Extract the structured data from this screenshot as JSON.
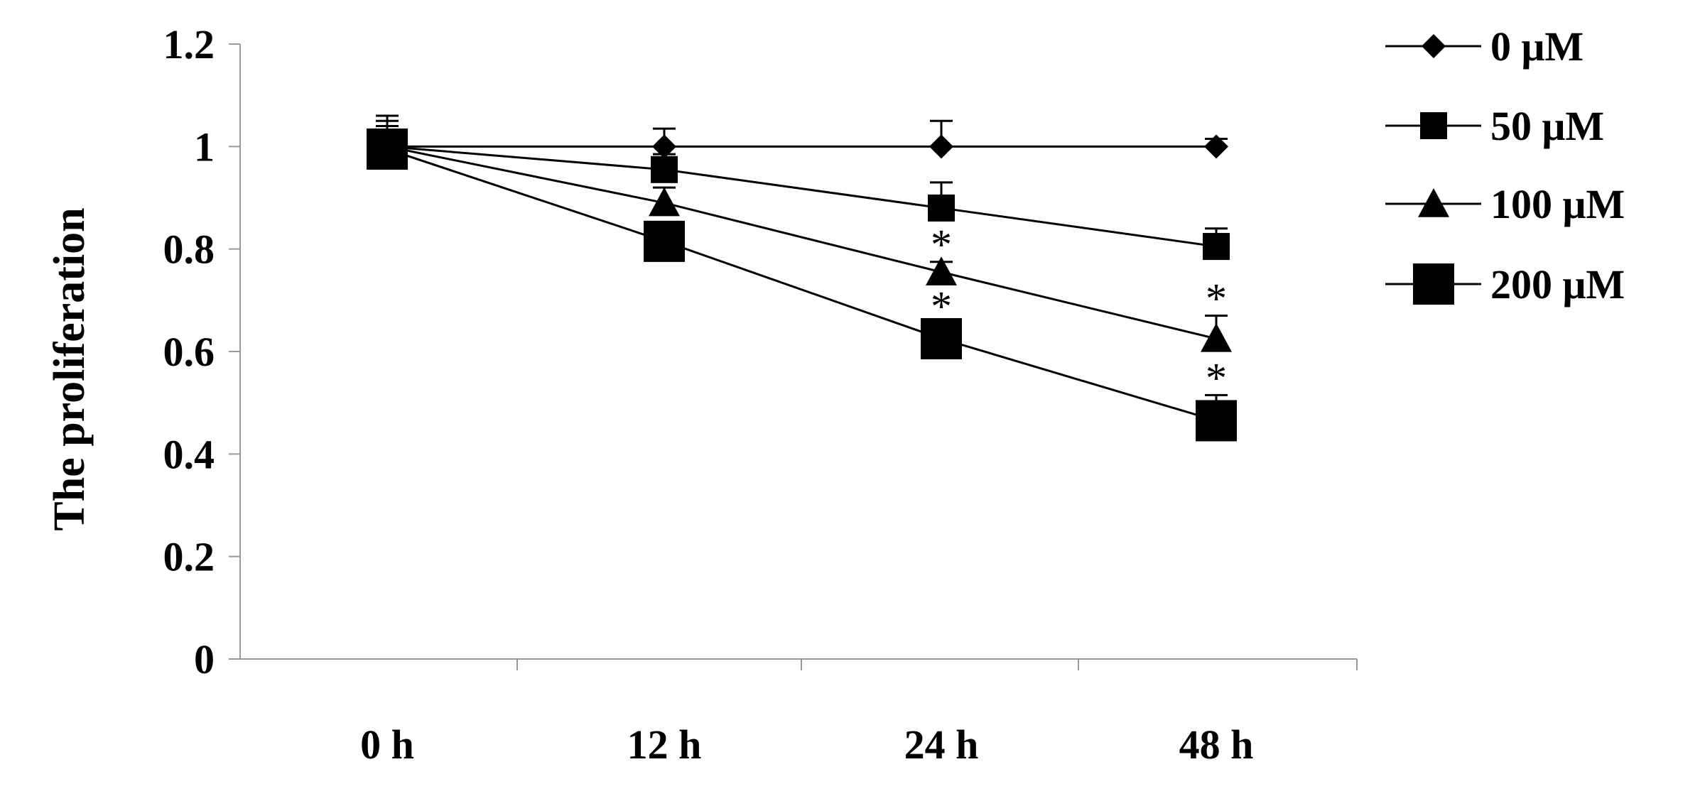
{
  "chart_data": {
    "type": "line",
    "title": "",
    "xlabel": "",
    "ylabel": "The proliferation",
    "categories": [
      "0 h",
      "12 h",
      "24 h",
      "48 h"
    ],
    "ylim": [
      0,
      1.2
    ],
    "yticks": [
      "0",
      "0.2",
      "0.4",
      "0.6",
      "0.8",
      "1",
      "1.2"
    ],
    "grid": false,
    "legend_position": "right",
    "series": [
      {
        "name": "0 μM",
        "marker": "diamond",
        "values": [
          1.0,
          1.0,
          1.0,
          1.0
        ],
        "errors": [
          0.06,
          0.035,
          0.05,
          0.015
        ],
        "significant": [
          false,
          false,
          false,
          false
        ]
      },
      {
        "name": "50 μM",
        "marker": "square-small",
        "values": [
          1.0,
          0.955,
          0.88,
          0.805
        ],
        "errors": [
          0.05,
          0.03,
          0.05,
          0.035
        ],
        "significant": [
          false,
          false,
          false,
          false
        ]
      },
      {
        "name": "100 μM",
        "marker": "triangle",
        "values": [
          1.0,
          0.89,
          0.755,
          0.625
        ],
        "errors": [
          0.04,
          0.03,
          0.02,
          0.045
        ],
        "significant": [
          false,
          false,
          true,
          true
        ]
      },
      {
        "name": "200 μM",
        "marker": "square-large",
        "values": [
          0.995,
          0.815,
          0.625,
          0.465
        ],
        "errors": [
          0.03,
          0.03,
          0.03,
          0.05
        ],
        "significant": [
          false,
          false,
          true,
          true
        ]
      }
    ],
    "significance_marker": "*"
  }
}
